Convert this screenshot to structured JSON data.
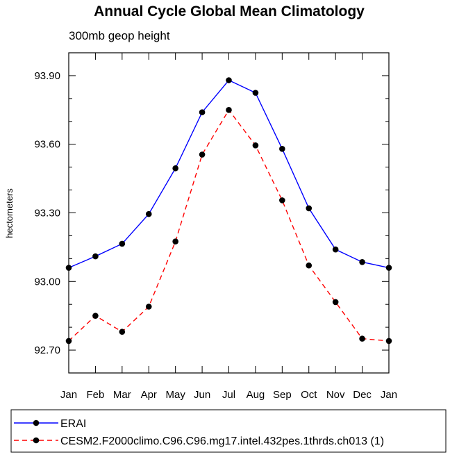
{
  "chart_data": {
    "type": "line",
    "title": "Annual Cycle Global Mean Climatology",
    "subtitle": "300mb geop height",
    "ylabel": "hectometers",
    "xlabel": "",
    "categories": [
      "Jan",
      "Feb",
      "Mar",
      "Apr",
      "May",
      "Jun",
      "Jul",
      "Aug",
      "Sep",
      "Oct",
      "Nov",
      "Dec",
      "Jan"
    ],
    "ylim": [
      92.6,
      94.0
    ],
    "yticks": [
      92.7,
      93.0,
      93.3,
      93.6,
      93.9
    ],
    "ytick_labels": [
      "92.70",
      "93.00",
      "93.30",
      "93.60",
      "93.90"
    ],
    "grid": false,
    "legend_placement": "bottom",
    "series": [
      {
        "name": "ERAI",
        "color": "#0000ff",
        "dash": "solid",
        "values": [
          93.06,
          93.11,
          93.165,
          93.295,
          93.495,
          93.74,
          93.88,
          93.825,
          93.58,
          93.32,
          93.14,
          93.085,
          93.06
        ]
      },
      {
        "name": "CESM2.F2000climo.C96.C96.mg17.intel.432pes.1thrds.ch013 (1)",
        "color": "#ff0000",
        "dash": "dashed",
        "values": [
          92.74,
          92.85,
          92.78,
          92.89,
          93.175,
          93.555,
          93.75,
          93.595,
          93.355,
          93.07,
          92.91,
          92.75,
          92.74
        ]
      }
    ]
  }
}
